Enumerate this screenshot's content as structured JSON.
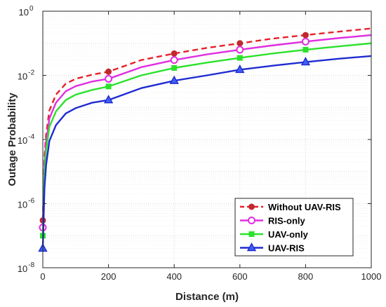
{
  "chart_data": {
    "type": "line",
    "title": "",
    "xlabel": "Distance (m)",
    "ylabel": "Outage Probability",
    "xlim": [
      0,
      1000
    ],
    "ylim": [
      1e-08,
      1
    ],
    "yscale": "log",
    "grid": true,
    "legend_position": "bottom-right",
    "x_ticks": [
      "0",
      "200",
      "400",
      "600",
      "800",
      "1000"
    ],
    "y_ticks": [
      {
        "base": "10",
        "exp": "0",
        "value": 1
      },
      {
        "base": "10",
        "exp": "-2",
        "value": 0.01
      },
      {
        "base": "10",
        "exp": "-4",
        "value": 0.0001
      },
      {
        "base": "10",
        "exp": "-6",
        "value": 1e-06
      },
      {
        "base": "10",
        "exp": "-8",
        "value": 1e-08
      }
    ],
    "series": [
      {
        "name": "Without UAV-RIS",
        "color": "#e8202a",
        "marker": "circle",
        "marker_fill": "#c0282d",
        "dash": "dashed",
        "x": [
          0,
          5,
          10,
          20,
          40,
          70,
          100,
          150,
          200,
          300,
          400,
          500,
          600,
          700,
          800,
          900,
          1000
        ],
        "y": [
          3e-07,
          3e-05,
          0.00014,
          0.0008,
          0.0025,
          0.0055,
          0.0078,
          0.0105,
          0.013,
          0.03,
          0.048,
          0.072,
          0.1,
          0.14,
          0.18,
          0.23,
          0.29
        ],
        "marker_x": [
          0,
          200,
          400,
          600,
          800
        ],
        "marker_y": [
          3e-07,
          0.013,
          0.048,
          0.1,
          0.18
        ]
      },
      {
        "name": "RIS-only",
        "color": "#e02ee0",
        "marker": "circle-open",
        "marker_fill": "#ffffff",
        "dash": "solid",
        "x": [
          0,
          5,
          10,
          20,
          40,
          70,
          100,
          150,
          200,
          300,
          400,
          500,
          600,
          700,
          800,
          900,
          1000
        ],
        "y": [
          1.8e-07,
          1.7e-05,
          8e-05,
          0.00045,
          0.0014,
          0.0032,
          0.0046,
          0.0064,
          0.0078,
          0.018,
          0.03,
          0.045,
          0.063,
          0.086,
          0.113,
          0.145,
          0.18
        ],
        "marker_x": [
          0,
          200,
          400,
          600,
          800
        ],
        "marker_y": [
          1.8e-07,
          0.0078,
          0.03,
          0.063,
          0.113
        ]
      },
      {
        "name": "UAV-only",
        "color": "#2be22b",
        "marker": "square",
        "marker_fill": "#2be22b",
        "dash": "solid",
        "x": [
          0,
          5,
          10,
          20,
          40,
          70,
          100,
          150,
          200,
          300,
          400,
          500,
          600,
          700,
          800,
          900,
          1000
        ],
        "y": [
          1e-07,
          1e-05,
          4.5e-05,
          0.00025,
          0.00075,
          0.0017,
          0.0025,
          0.0035,
          0.0045,
          0.01,
          0.017,
          0.025,
          0.035,
          0.048,
          0.063,
          0.08,
          0.1
        ],
        "marker_x": [
          0,
          200,
          400,
          600,
          800
        ],
        "marker_y": [
          1e-07,
          0.0045,
          0.017,
          0.035,
          0.063
        ]
      },
      {
        "name": "UAV-RIS",
        "color": "#1f2bd1",
        "marker": "triangle",
        "marker_fill": "#3f5ff0",
        "dash": "solid",
        "x": [
          0,
          5,
          10,
          20,
          40,
          70,
          100,
          150,
          200,
          300,
          400,
          500,
          600,
          700,
          800,
          900,
          1000
        ],
        "y": [
          4e-08,
          3e-06,
          1.6e-05,
          9e-05,
          0.00028,
          0.00065,
          0.00095,
          0.0014,
          0.0017,
          0.004,
          0.0068,
          0.01,
          0.015,
          0.02,
          0.026,
          0.033,
          0.04
        ],
        "marker_x": [
          0,
          200,
          400,
          600,
          800
        ],
        "marker_y": [
          4e-08,
          0.0017,
          0.0068,
          0.015,
          0.026
        ]
      }
    ]
  }
}
